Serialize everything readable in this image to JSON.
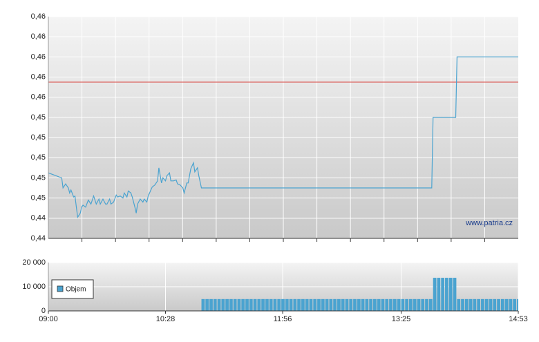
{
  "chart_data": [
    {
      "type": "line",
      "color": "#4aa3d0",
      "watermark": "www.patria.cz",
      "x": [
        "09:00",
        "09:10",
        "09:11",
        "09:13",
        "09:15",
        "09:16",
        "09:17",
        "09:19",
        "09:20",
        "09:21",
        "09:22",
        "09:24",
        "09:25",
        "09:26",
        "09:28",
        "09:30",
        "09:31",
        "09:32",
        "09:34",
        "09:35",
        "09:36",
        "09:38",
        "09:39",
        "09:41",
        "09:43",
        "09:44",
        "09:46",
        "09:47",
        "09:49",
        "09:51",
        "09:52",
        "09:54",
        "09:56",
        "09:57",
        "09:59",
        "10:00",
        "10:02",
        "10:03",
        "10:05",
        "10:06",
        "10:07",
        "10:09",
        "10:11",
        "10:12",
        "10:14",
        "10:15",
        "10:17",
        "10:18",
        "10:20",
        "10:22",
        "10:23",
        "10:25",
        "10:26",
        "10:28",
        "10:29",
        "10:31",
        "10:32",
        "10:34",
        "10:36",
        "10:37",
        "10:39",
        "10:41",
        "10:42",
        "10:44",
        "10:45",
        "10:47",
        "10:49",
        "10:50",
        "10:52",
        "10:53",
        "10:55",
        "13:48",
        "13:49",
        "14:06",
        "14:07",
        "14:53"
      ],
      "values": [
        0.4485,
        0.448,
        0.447,
        0.4474,
        0.447,
        0.4465,
        0.4468,
        0.4461,
        0.4462,
        0.4451,
        0.4441,
        0.4445,
        0.4451,
        0.4453,
        0.4451,
        0.4458,
        0.4456,
        0.4454,
        0.4462,
        0.4458,
        0.4454,
        0.4459,
        0.4454,
        0.4459,
        0.4454,
        0.4454,
        0.4459,
        0.4454,
        0.4456,
        0.4463,
        0.4461,
        0.4462,
        0.446,
        0.4465,
        0.4461,
        0.4467,
        0.4465,
        0.4461,
        0.4451,
        0.4445,
        0.4454,
        0.4459,
        0.4456,
        0.4459,
        0.4456,
        0.4462,
        0.4468,
        0.4471,
        0.4473,
        0.4477,
        0.449,
        0.4475,
        0.448,
        0.4477,
        0.4482,
        0.4485,
        0.4477,
        0.4477,
        0.4478,
        0.4474,
        0.4473,
        0.447,
        0.4465,
        0.4475,
        0.4475,
        0.4489,
        0.4495,
        0.4486,
        0.449,
        0.4482,
        0.447,
        0.447,
        0.454,
        0.454,
        0.46,
        0.46
      ],
      "reference_line": 0.4575,
      "reference_color": "#d9534f",
      "xlim": [
        "09:00",
        "14:53"
      ],
      "ylim": [
        0.442,
        0.464
      ],
      "yticks": [
        {
          "value": 0.442,
          "label": "0,44"
        },
        {
          "value": 0.444,
          "label": "0,44"
        },
        {
          "value": 0.446,
          "label": "0,45"
        },
        {
          "value": 0.448,
          "label": "0,45"
        },
        {
          "value": 0.45,
          "label": "0,45"
        },
        {
          "value": 0.452,
          "label": "0,45"
        },
        {
          "value": 0.454,
          "label": "0,45"
        },
        {
          "value": 0.456,
          "label": "0,46"
        },
        {
          "value": 0.458,
          "label": "0,46"
        },
        {
          "value": 0.46,
          "label": "0,46"
        },
        {
          "value": 0.462,
          "label": "0,46"
        },
        {
          "value": 0.464,
          "label": "0,46"
        }
      ],
      "grid": true
    },
    {
      "type": "bar",
      "legend": "upper left",
      "x": [
        "10:55",
        "10:58",
        "11:01",
        "11:04",
        "11:07",
        "11:10",
        "11:13",
        "11:16",
        "11:19",
        "11:22",
        "11:25",
        "11:28",
        "11:31",
        "11:34",
        "11:37",
        "11:40",
        "11:43",
        "11:46",
        "11:49",
        "11:52",
        "11:55",
        "11:58",
        "12:01",
        "12:04",
        "12:07",
        "12:10",
        "12:13",
        "12:16",
        "12:19",
        "12:22",
        "12:25",
        "12:28",
        "12:31",
        "12:34",
        "12:37",
        "12:40",
        "12:43",
        "12:46",
        "12:49",
        "12:52",
        "12:55",
        "12:58",
        "13:01",
        "13:04",
        "13:07",
        "13:10",
        "13:13",
        "13:16",
        "13:19",
        "13:22",
        "13:25",
        "13:28",
        "13:31",
        "13:34",
        "13:37",
        "13:40",
        "13:43",
        "13:46",
        "13:49",
        "13:52",
        "13:55",
        "13:58",
        "14:01",
        "14:04",
        "14:07",
        "14:10",
        "14:13",
        "14:16",
        "14:19",
        "14:22",
        "14:25",
        "14:28",
        "14:31",
        "14:34",
        "14:37",
        "14:40",
        "14:43",
        "14:46",
        "14:49",
        "14:52"
      ],
      "series": [
        {
          "name": "Objem",
          "color": "#4aa3d0",
          "values": [
            4900,
            4900,
            4900,
            4900,
            4900,
            4900,
            4900,
            4900,
            4900,
            4900,
            4900,
            4900,
            4900,
            4900,
            4900,
            4900,
            4900,
            4900,
            4900,
            4900,
            4900,
            4900,
            4900,
            4900,
            4900,
            4900,
            4900,
            4900,
            4900,
            4900,
            4900,
            4900,
            4900,
            4900,
            4900,
            4900,
            4900,
            4900,
            4900,
            4900,
            4900,
            4900,
            4900,
            4900,
            4900,
            4900,
            4900,
            4900,
            4900,
            4900,
            4900,
            4900,
            4900,
            4900,
            4900,
            4900,
            4900,
            4900,
            13700,
            13700,
            13700,
            13700,
            13700,
            13700,
            4900,
            4900,
            4900,
            4900,
            4900,
            4900,
            4900,
            4900,
            4900,
            4900,
            4900,
            4900,
            4900,
            4900,
            4900,
            4900
          ]
        }
      ],
      "xlim": [
        "09:00",
        "14:53"
      ],
      "xticks": [
        "09:00",
        "10:28",
        "11:56",
        "13:25",
        "14:53"
      ],
      "ylim": [
        0,
        20000
      ],
      "yticks": [
        0,
        {
          "value": 10000,
          "label": "10 000"
        },
        {
          "value": 20000,
          "label": "20 000"
        }
      ],
      "grid": true
    }
  ]
}
